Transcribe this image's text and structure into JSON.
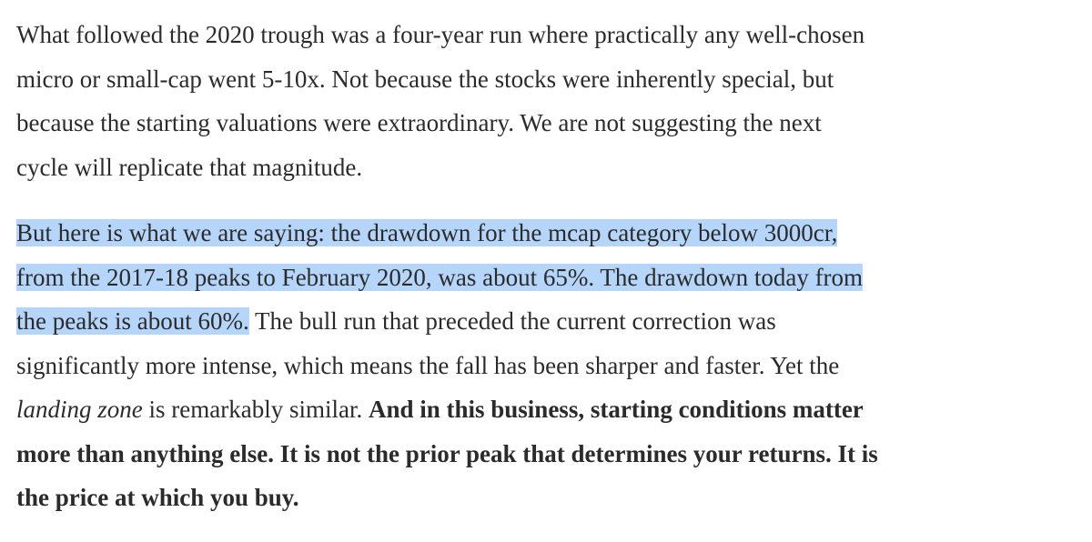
{
  "paragraphs": [
    {
      "lines": [
        {
          "segments": [
            {
              "text": "What followed the 2020 trough was a four-year run where practically any well-chosen"
            }
          ]
        },
        {
          "segments": [
            {
              "text": "micro or small-cap went 5-10x. Not because the stocks were inherently special, but"
            }
          ]
        },
        {
          "segments": [
            {
              "text": "because the starting valuations were extraordinary. We are not suggesting the next"
            }
          ]
        },
        {
          "segments": [
            {
              "text": "cycle will replicate that magnitude."
            }
          ]
        }
      ]
    },
    {
      "lines": [
        {
          "segments": [
            {
              "text": "But here is what we are saying: the drawdown for the mcap category below 3000cr,",
              "style": "highlight"
            }
          ]
        },
        {
          "segments": [
            {
              "text": "from the 2017-18 peaks to February 2020, was about 65%. The drawdown today from",
              "style": "highlight"
            }
          ]
        },
        {
          "segments": [
            {
              "text": "the peaks is about 60%.",
              "style": "highlight"
            },
            {
              "text": " The bull run that preceded the current correction was"
            }
          ]
        },
        {
          "segments": [
            {
              "text": "significantly more intense, which means the fall has been sharper and faster. Yet the"
            }
          ]
        },
        {
          "segments": [
            {
              "text": "landing zone",
              "style": "italic"
            },
            {
              "text": " is remarkably similar. "
            },
            {
              "text": "And in this business, starting conditions matter",
              "style": "bold"
            }
          ]
        },
        {
          "segments": [
            {
              "text": "more than anything else. It is not the prior peak that determines your returns. It is",
              "style": "bold"
            }
          ]
        },
        {
          "segments": [
            {
              "text": "the price at which you buy.",
              "style": "bold"
            }
          ]
        }
      ]
    }
  ]
}
